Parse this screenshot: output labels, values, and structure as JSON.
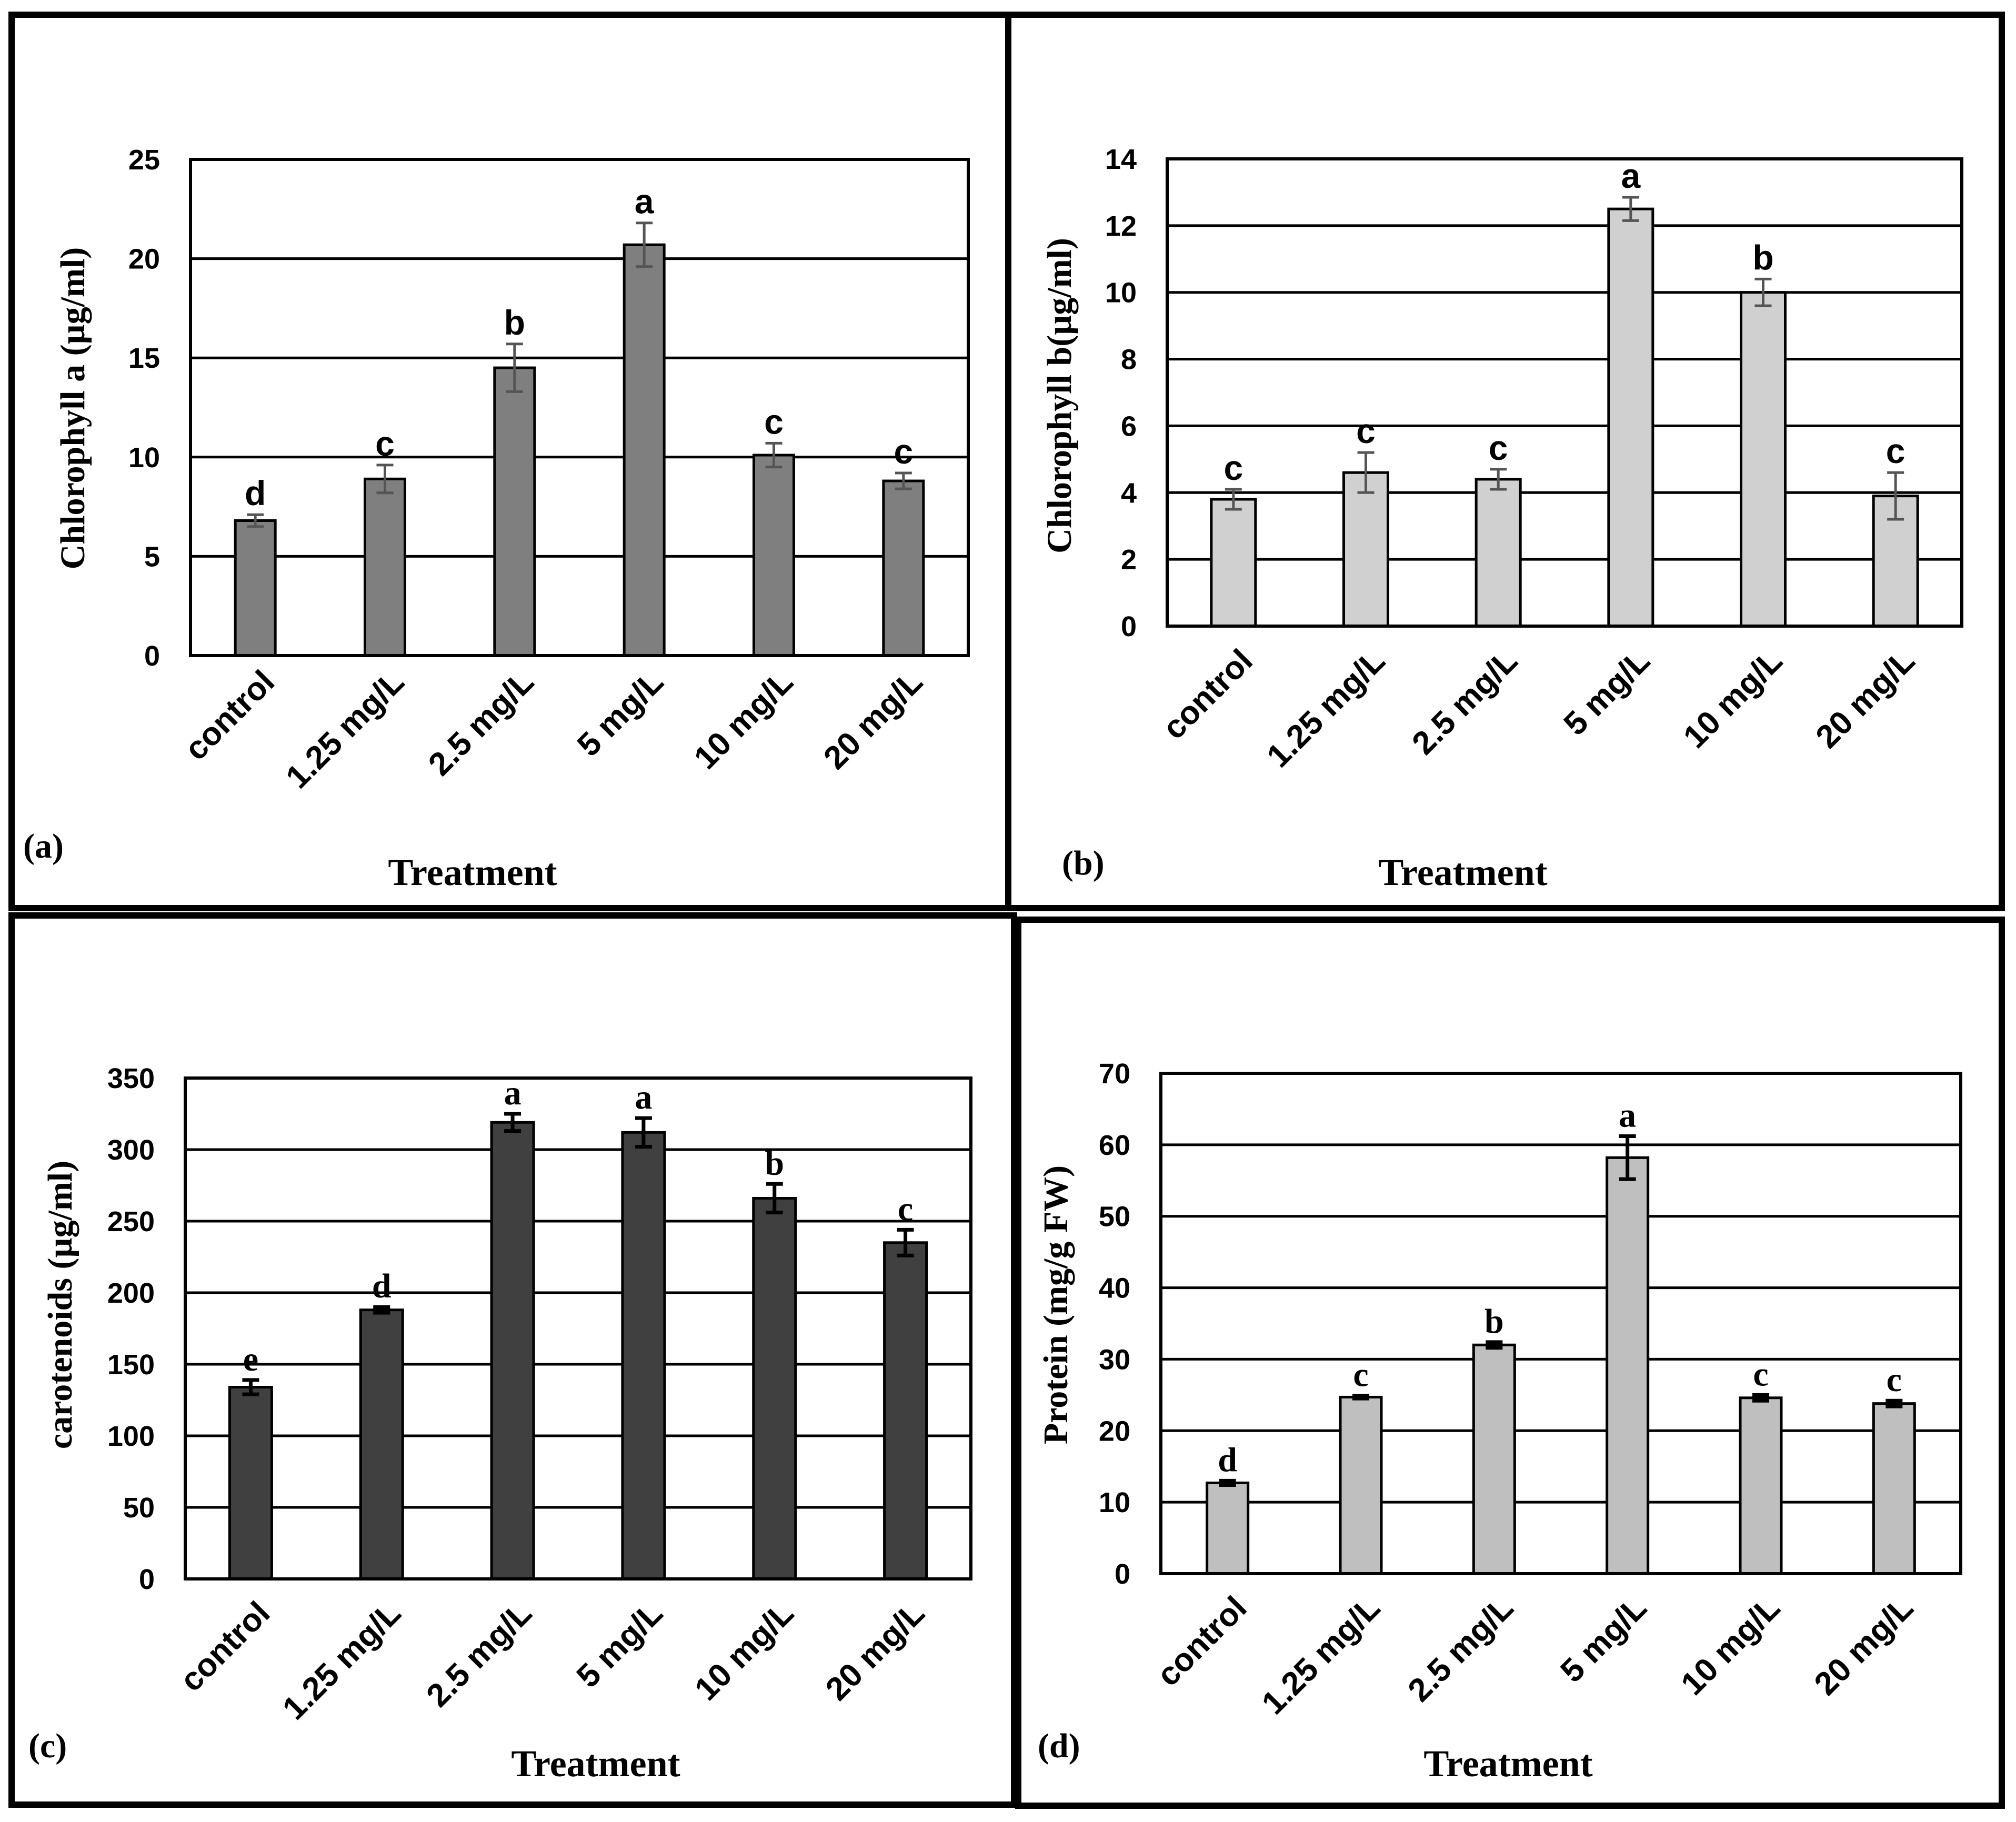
{
  "chart_data": [
    {
      "panel": "(a)",
      "type": "bar",
      "title": "",
      "xlabel": "Treatment",
      "ylabel": "Chlorophyll a (µg/ml)",
      "ylim": [
        0,
        25
      ],
      "yticks": [
        "0",
        "5",
        "10",
        "15",
        "20",
        "25"
      ],
      "categories": [
        "control",
        "1.25 mg/L",
        "2.5 mg/L",
        "5 mg/L",
        "10 mg/L",
        "20 mg/L"
      ],
      "values": [
        6.8,
        8.9,
        14.5,
        20.7,
        10.1,
        8.8
      ],
      "errors": [
        0.3,
        0.7,
        1.2,
        1.1,
        0.6,
        0.4
      ],
      "letters": [
        "d",
        "c",
        "b",
        "a",
        "c",
        "c"
      ],
      "bar_color": "#7f7f7f",
      "grid": true
    },
    {
      "panel": "(b)",
      "type": "bar",
      "title": "",
      "xlabel": "Treatment",
      "ylabel": "Chlorophyll b(µg/ml)",
      "ylim": [
        0,
        14
      ],
      "yticks": [
        "0",
        "2",
        "4",
        "6",
        "8",
        "10",
        "12",
        "14"
      ],
      "categories": [
        "control",
        "1.25 mg/L",
        "2.5 mg/L",
        "5 mg/L",
        "10 mg/L",
        "20 mg/L"
      ],
      "values": [
        3.8,
        4.6,
        4.4,
        12.5,
        10.0,
        3.9
      ],
      "errors": [
        0.3,
        0.6,
        0.3,
        0.35,
        0.4,
        0.7
      ],
      "letters": [
        "c",
        "c",
        "c",
        "a",
        "b",
        "c"
      ],
      "bar_color": "#d0d0d0",
      "grid": true
    },
    {
      "panel": "(c)",
      "type": "bar",
      "title": "",
      "xlabel": "Treatment",
      "ylabel": "carotenoids (µg/ml)",
      "ylim": [
        0,
        350
      ],
      "yticks": [
        "0",
        "50",
        "100",
        "150",
        "200",
        "250",
        "300",
        "350"
      ],
      "categories": [
        "control",
        "1.25 mg/L",
        "2.5 mg/L",
        "5 mg/L",
        "10 mg/L",
        "20 mg/L"
      ],
      "values": [
        134,
        188,
        319,
        312,
        266,
        235
      ],
      "errors": [
        5,
        2,
        6,
        10,
        10,
        9
      ],
      "letters": [
        "e",
        "d",
        "a",
        "a",
        "b",
        "c"
      ],
      "bar_color": "#404040",
      "grid": true
    },
    {
      "panel": "(d)",
      "type": "bar",
      "title": "",
      "xlabel": "Treatment",
      "ylabel": "Protein (mg/g FW)",
      "ylim": [
        0,
        70
      ],
      "yticks": [
        "0",
        "10",
        "20",
        "30",
        "40",
        "50",
        "60",
        "70"
      ],
      "categories": [
        "control",
        "1.25 mg/L",
        "2.5 mg/L",
        "5 mg/L",
        "10 mg/L",
        "20 mg/L"
      ],
      "values": [
        12.7,
        24.7,
        32.0,
        58.2,
        24.6,
        23.8
      ],
      "errors": [
        0.3,
        0.2,
        0.4,
        3.0,
        0.4,
        0.4
      ],
      "letters": [
        "d",
        "c",
        "b",
        "a",
        "c",
        "c"
      ],
      "bar_color": "#bfbfbf",
      "grid": true
    }
  ]
}
